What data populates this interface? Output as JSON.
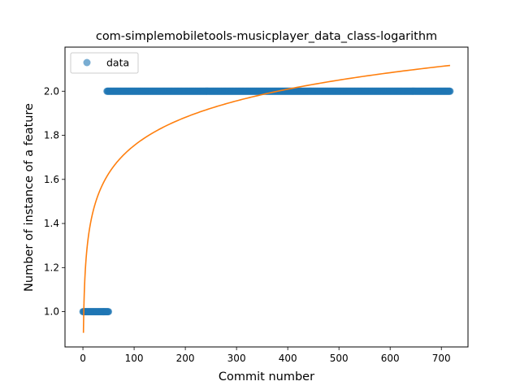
{
  "chart_data": {
    "type": "scatter",
    "title": "com-simplemobiletools-musicplayer_data_class-logarithm",
    "xlabel": "Commit number",
    "ylabel": "Number of instance of a feature",
    "xlim": [
      -35,
      752
    ],
    "ylim": [
      0.84,
      2.2
    ],
    "xticks": [
      0,
      100,
      200,
      300,
      400,
      500,
      600,
      700
    ],
    "yticks": [
      1.0,
      1.2,
      1.4,
      1.6,
      1.8,
      2.0
    ],
    "ytick_labels": [
      "1.0",
      "1.2",
      "1.4",
      "1.6",
      "1.8",
      "2.0"
    ],
    "legend": {
      "position": "upper-left",
      "entries": [
        "data"
      ]
    },
    "grid": false,
    "series": [
      {
        "name": "data",
        "kind": "points",
        "color": "#1f77b4",
        "segments": [
          {
            "x_start": 0,
            "x_end": 50,
            "y": 1.0
          },
          {
            "x_start": 47,
            "x_end": 717,
            "y": 2.0
          }
        ]
      },
      {
        "kind": "line",
        "color": "#ff7f0e",
        "fit": {
          "function": "a*ln(x)+b",
          "a": 0.1845,
          "b": 0.9039,
          "x_start": 1,
          "x_end": 717
        }
      }
    ]
  }
}
